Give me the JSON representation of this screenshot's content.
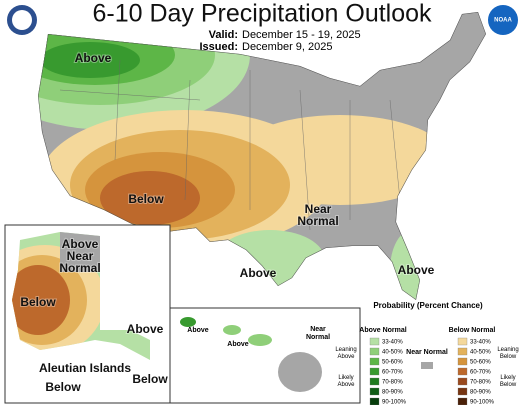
{
  "header": {
    "title": "6-10 Day Precipitation Outlook",
    "valid_label": "Valid:",
    "valid": "December 15 - 19, 2025",
    "issued_label": "Issued:",
    "issued": "December 9, 2025",
    "logo_right": "NOAA"
  },
  "conus_labels": [
    "Above",
    "Below",
    "Near Normal",
    "Above",
    "Above"
  ],
  "alaska_labels": [
    "Above Near Normal",
    "Below",
    "Above",
    "Aleutian Islands",
    "Below",
    "Below"
  ],
  "hawaii_labels": [
    "Above",
    "Above",
    "Near Normal"
  ],
  "legend": {
    "title": "Probability (Percent Chance)",
    "above_title": "Above Normal",
    "below_title": "Below Normal",
    "near_title": "Near Normal",
    "leaning_above": "Leaning Above",
    "likely_above": "Likely Above",
    "leaning_below": "Leaning Below",
    "likely_below": "Likely Below",
    "near_color": "#a6a6a6",
    "above_bins": [
      {
        "label": "33-40%",
        "color": "#b5e0a5"
      },
      {
        "label": "40-50%",
        "color": "#8fcf79"
      },
      {
        "label": "50-60%",
        "color": "#5db647"
      },
      {
        "label": "60-70%",
        "color": "#389a2f"
      },
      {
        "label": "70-80%",
        "color": "#1f7a1f"
      },
      {
        "label": "80-90%",
        "color": "#0f5c15"
      },
      {
        "label": "90-100%",
        "color": "#073d0c"
      }
    ],
    "below_bins": [
      {
        "label": "33-40%",
        "color": "#f4d89b"
      },
      {
        "label": "40-50%",
        "color": "#e3b25c"
      },
      {
        "label": "50-60%",
        "color": "#d5943d"
      },
      {
        "label": "60-70%",
        "color": "#bd692c"
      },
      {
        "label": "70-80%",
        "color": "#9a4a1e"
      },
      {
        "label": "80-90%",
        "color": "#773512"
      },
      {
        "label": "90-100%",
        "color": "#4a2008"
      }
    ]
  }
}
